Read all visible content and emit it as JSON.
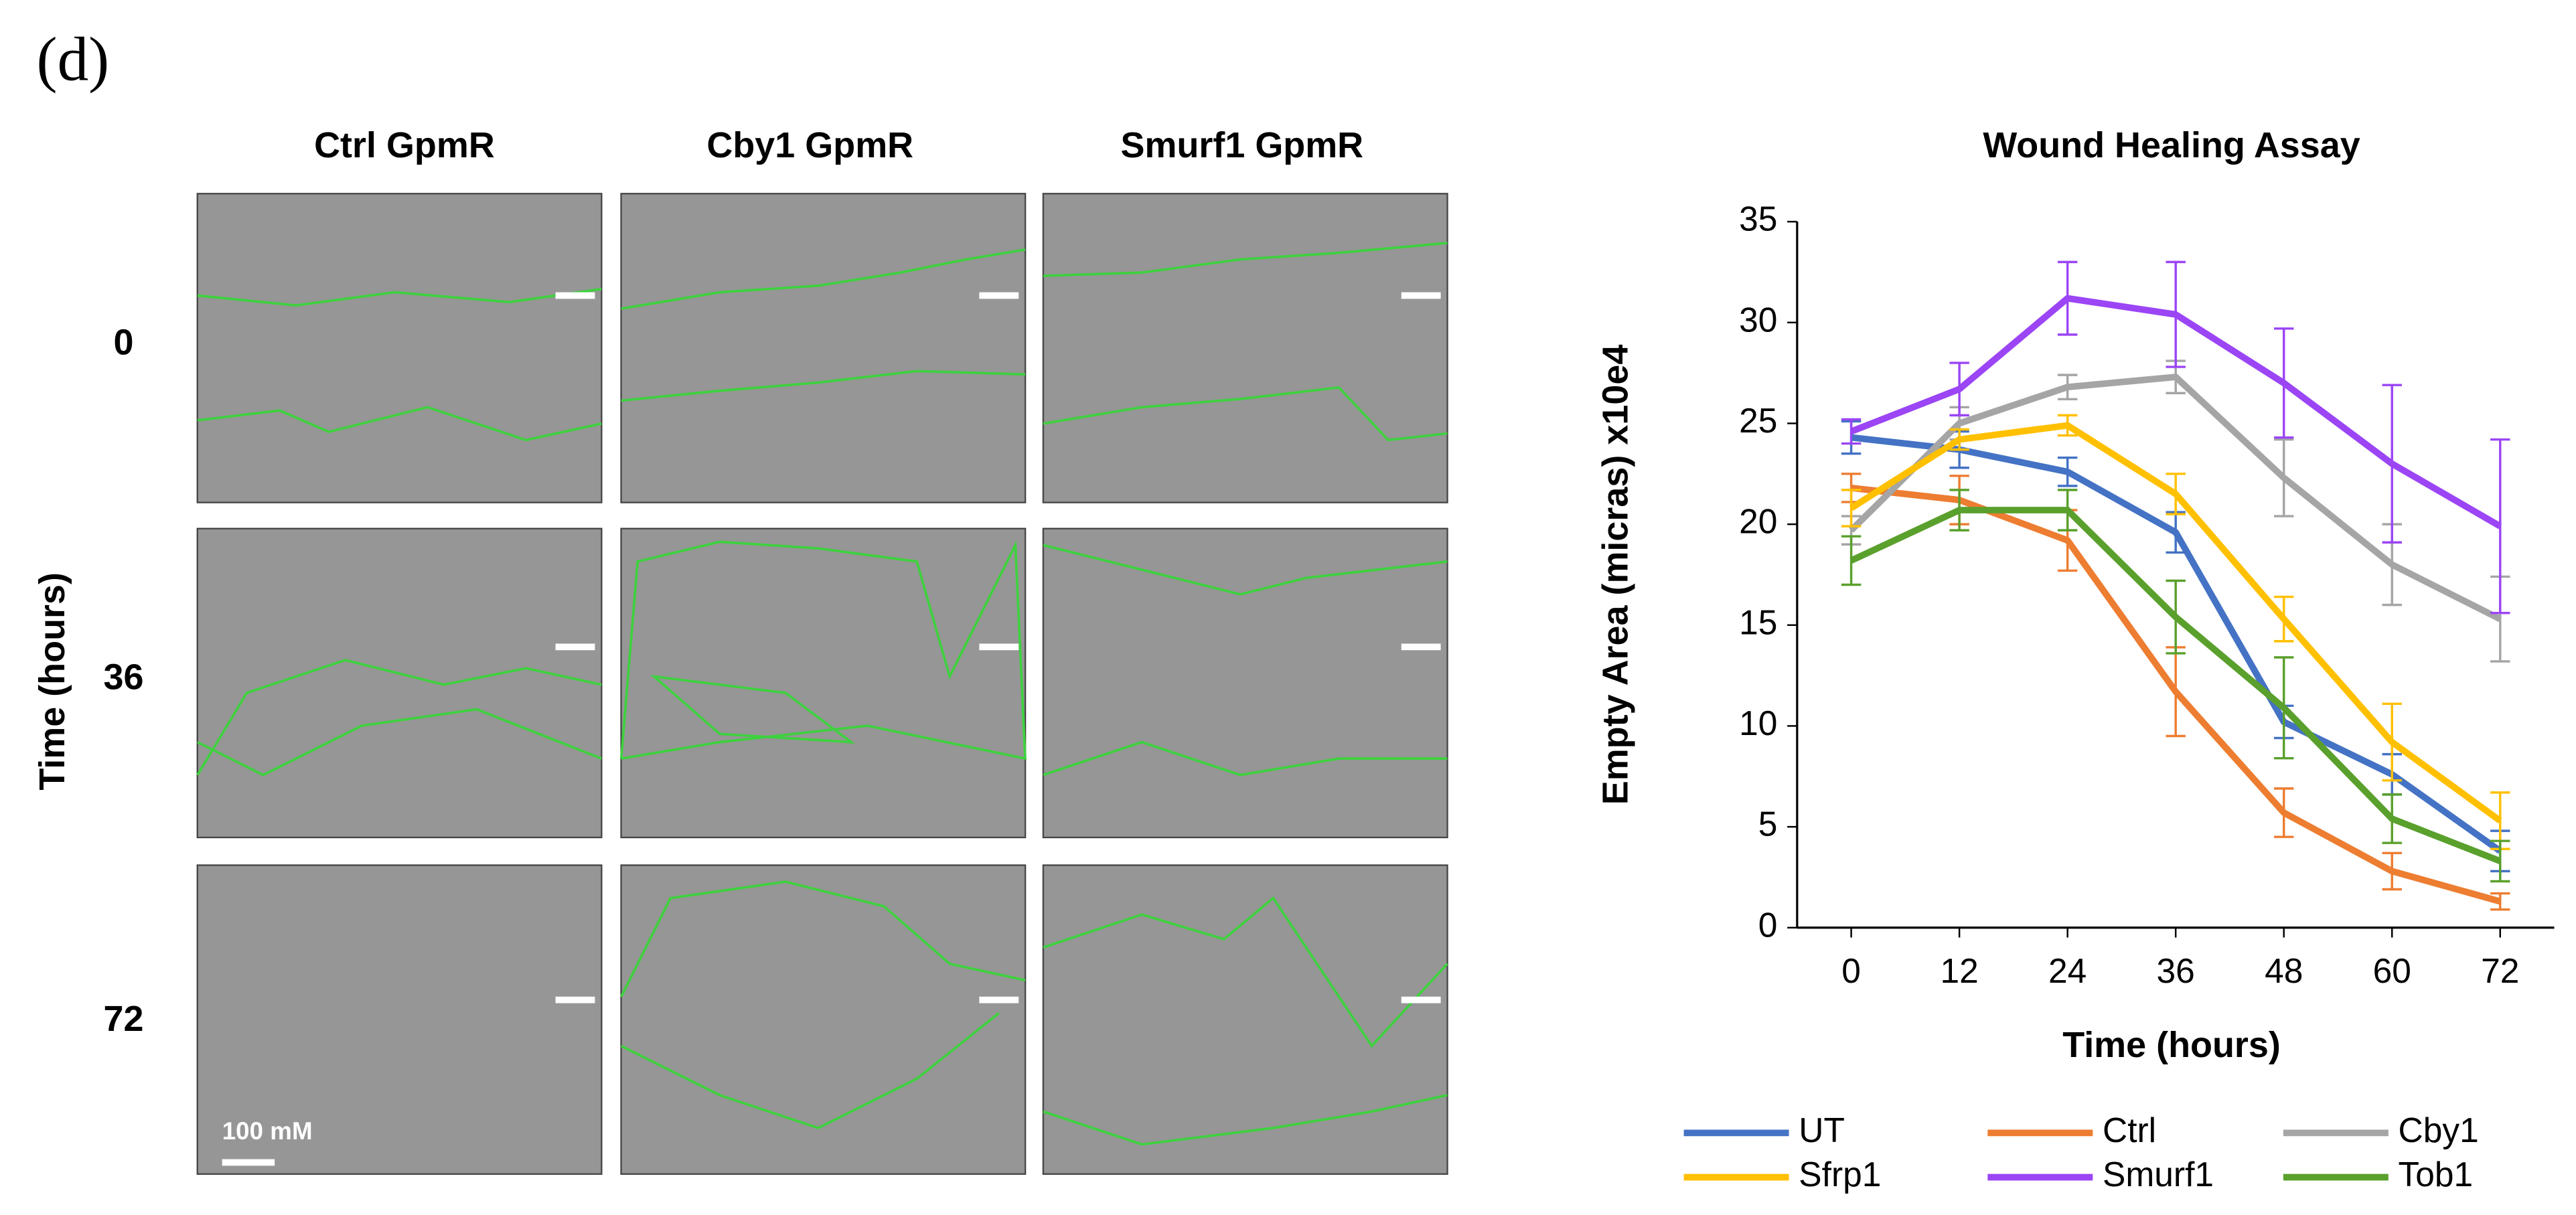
{
  "panel_label": "(d)",
  "micrographs": {
    "columns": [
      "Ctrl GpmR",
      "Cby1 GpmR",
      "Smurf1 GpmR"
    ],
    "rows": [
      "0",
      "36",
      "72"
    ],
    "row_axis_label": "Time (hours)",
    "scale_bar": "100 mM"
  },
  "chart_data": {
    "type": "line",
    "title": "Wound Healing Assay",
    "x_label": "Time (hours)",
    "y_label": "Empty Area (micras) x10e4",
    "x": [
      0,
      12,
      24,
      36,
      48,
      60,
      72
    ],
    "xlim": [
      -6,
      78
    ],
    "xticks": [
      0,
      12,
      24,
      36,
      48,
      60,
      72
    ],
    "ylim": [
      0,
      35
    ],
    "yticks": [
      0,
      5,
      10,
      15,
      20,
      25,
      30,
      35
    ],
    "grid": false,
    "legend": "bottom",
    "series": [
      {
        "name": "UT",
        "color": "#4472c4",
        "values": [
          24.3,
          23.7,
          22.6,
          19.6,
          10.2,
          7.6,
          3.8
        ],
        "errors": [
          0.8,
          0.9,
          0.7,
          1.0,
          0.8,
          1.0,
          1.0
        ]
      },
      {
        "name": "Ctrl",
        "color": "#ed7d31",
        "values": [
          21.8,
          21.2,
          19.2,
          11.7,
          5.7,
          2.8,
          1.3
        ],
        "errors": [
          0.7,
          1.2,
          1.5,
          2.2,
          1.2,
          0.9,
          0.4
        ]
      },
      {
        "name": "Cby1",
        "color": "#a5a5a5",
        "values": [
          19.7,
          25.0,
          26.8,
          27.3,
          22.3,
          18.0,
          15.3
        ],
        "errors": [
          0.7,
          0.8,
          0.6,
          0.8,
          1.9,
          2.0,
          2.1
        ]
      },
      {
        "name": "Sfrp1",
        "color": "#ffc000",
        "values": [
          20.8,
          24.2,
          24.9,
          21.5,
          15.3,
          9.2,
          5.3
        ],
        "errors": [
          0.9,
          0.5,
          0.5,
          1.0,
          1.1,
          1.9,
          1.4
        ]
      },
      {
        "name": "Smurf1",
        "color": "#9b45f5",
        "values": [
          24.6,
          26.7,
          31.2,
          30.4,
          27.0,
          23.0,
          19.9
        ],
        "errors": [
          0.6,
          1.3,
          1.8,
          2.6,
          2.7,
          3.9,
          4.3
        ]
      },
      {
        "name": "Tob1",
        "color": "#5aa02c",
        "values": [
          18.2,
          20.7,
          20.7,
          15.4,
          10.9,
          5.4,
          3.3
        ],
        "errors": [
          1.2,
          1.0,
          1.0,
          1.8,
          2.5,
          1.2,
          1.0
        ]
      }
    ]
  }
}
